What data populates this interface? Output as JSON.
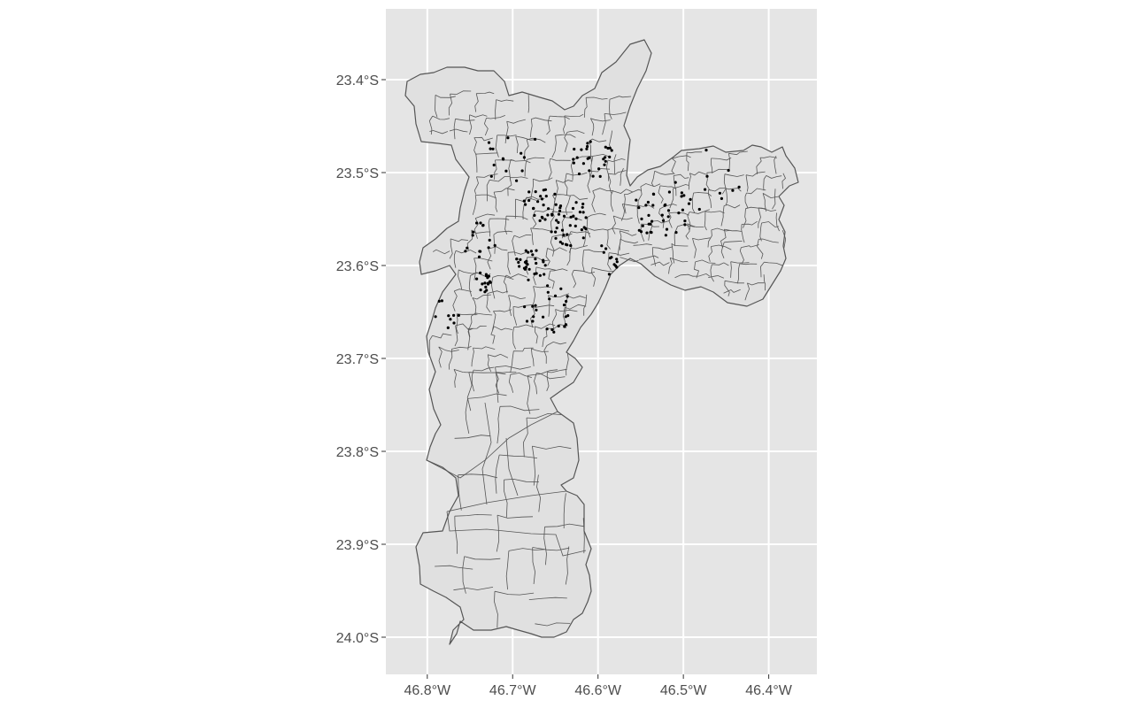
{
  "chart_data": {
    "type": "map",
    "x_axis": {
      "ticks": [
        -46.8,
        -46.7,
        -46.6,
        -46.5,
        -46.4
      ],
      "tick_labels": [
        "46.8°W",
        "46.7°W",
        "46.6°W",
        "46.5°W",
        "46.4°W"
      ],
      "range": [
        -46.85,
        -46.35
      ]
    },
    "y_axis": {
      "ticks": [
        -23.4,
        -23.5,
        -23.6,
        -23.7,
        -23.8,
        -23.9,
        -24.0
      ],
      "tick_labels": [
        "23.4°S",
        "23.5°S",
        "23.6°S",
        "23.7°S",
        "23.8°S",
        "23.9°S",
        "24.0°S"
      ],
      "range": [
        -24.04,
        -23.33
      ]
    },
    "grid": true,
    "panel_color": "#e5e5e5",
    "grid_color": "#ffffff",
    "region_fill": "#e0e0e0",
    "region_stroke": "#555555",
    "point_color": "#000000"
  }
}
